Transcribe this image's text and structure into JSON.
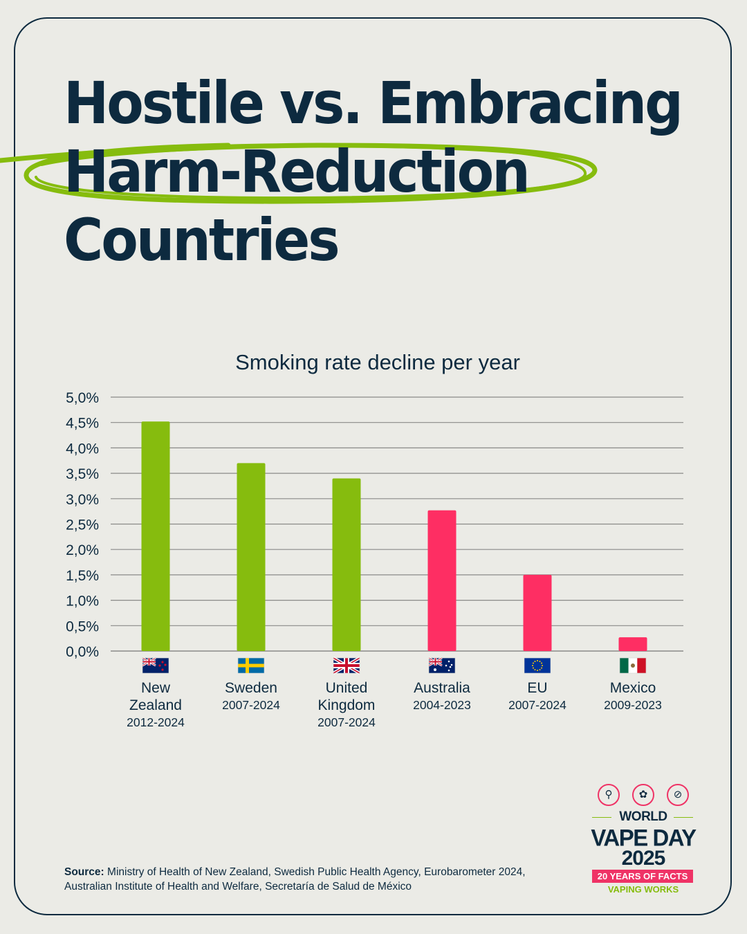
{
  "title": {
    "line1": "Hostile vs. Embracing",
    "line2": "Harm-Reduction",
    "line3": "Countries"
  },
  "colors": {
    "embracing": "#86bc0e",
    "hostile": "#fe2e63",
    "navy": "#0d2a3f",
    "background": "#ebebe6",
    "gridline": "#8a8a88"
  },
  "chart_data": {
    "type": "bar",
    "title": "Smoking rate decline per year",
    "xlabel": "",
    "ylabel": "",
    "ylim": [
      0,
      5
    ],
    "yticks": [
      "0,0%",
      "0,5%",
      "1,0%",
      "1,5%",
      "2,0%",
      "2,5%",
      "3,0%",
      "3,5%",
      "4,0%",
      "4,5%",
      "5,0%"
    ],
    "grid": true,
    "categories": [
      {
        "name": "New Zealand",
        "name_lines": [
          "New",
          "Zealand"
        ],
        "years": "2012-2024",
        "value": 4.52,
        "group": "embracing",
        "flag": "new-zealand-flag"
      },
      {
        "name": "Sweden",
        "name_lines": [
          "Sweden"
        ],
        "years": "2007-2024",
        "value": 3.7,
        "group": "embracing",
        "flag": "sweden-flag"
      },
      {
        "name": "United Kingdom",
        "name_lines": [
          "United",
          "Kingdom"
        ],
        "years": "2007-2024",
        "value": 3.4,
        "group": "embracing",
        "flag": "united-kingdom-flag"
      },
      {
        "name": "Australia",
        "name_lines": [
          "Australia"
        ],
        "years": "2004-2023",
        "value": 2.77,
        "group": "hostile",
        "flag": "australia-flag"
      },
      {
        "name": "EU",
        "name_lines": [
          "EU"
        ],
        "years": "2007-2024",
        "value": 1.5,
        "group": "hostile",
        "flag": "eu-flag"
      },
      {
        "name": "Mexico",
        "name_lines": [
          "Mexico"
        ],
        "years": "2009-2023",
        "value": 0.27,
        "group": "hostile",
        "flag": "mexico-flag"
      }
    ]
  },
  "source": {
    "label": "Source:",
    "text": "Ministry of Health of New Zealand, Swedish Public Health Agency, Eurobarometer 2024, Australian Institute of Health and Welfare, Secretaría de Salud de México"
  },
  "logo": {
    "icons": [
      "microscope-icon",
      "strawberry-icon",
      "no-smoking-icon"
    ],
    "line1": "WORLD",
    "line2": "VAPE DAY",
    "line3": "2025",
    "badge": "20 YEARS OF FACTS",
    "tagline": "VAPING WORKS"
  }
}
